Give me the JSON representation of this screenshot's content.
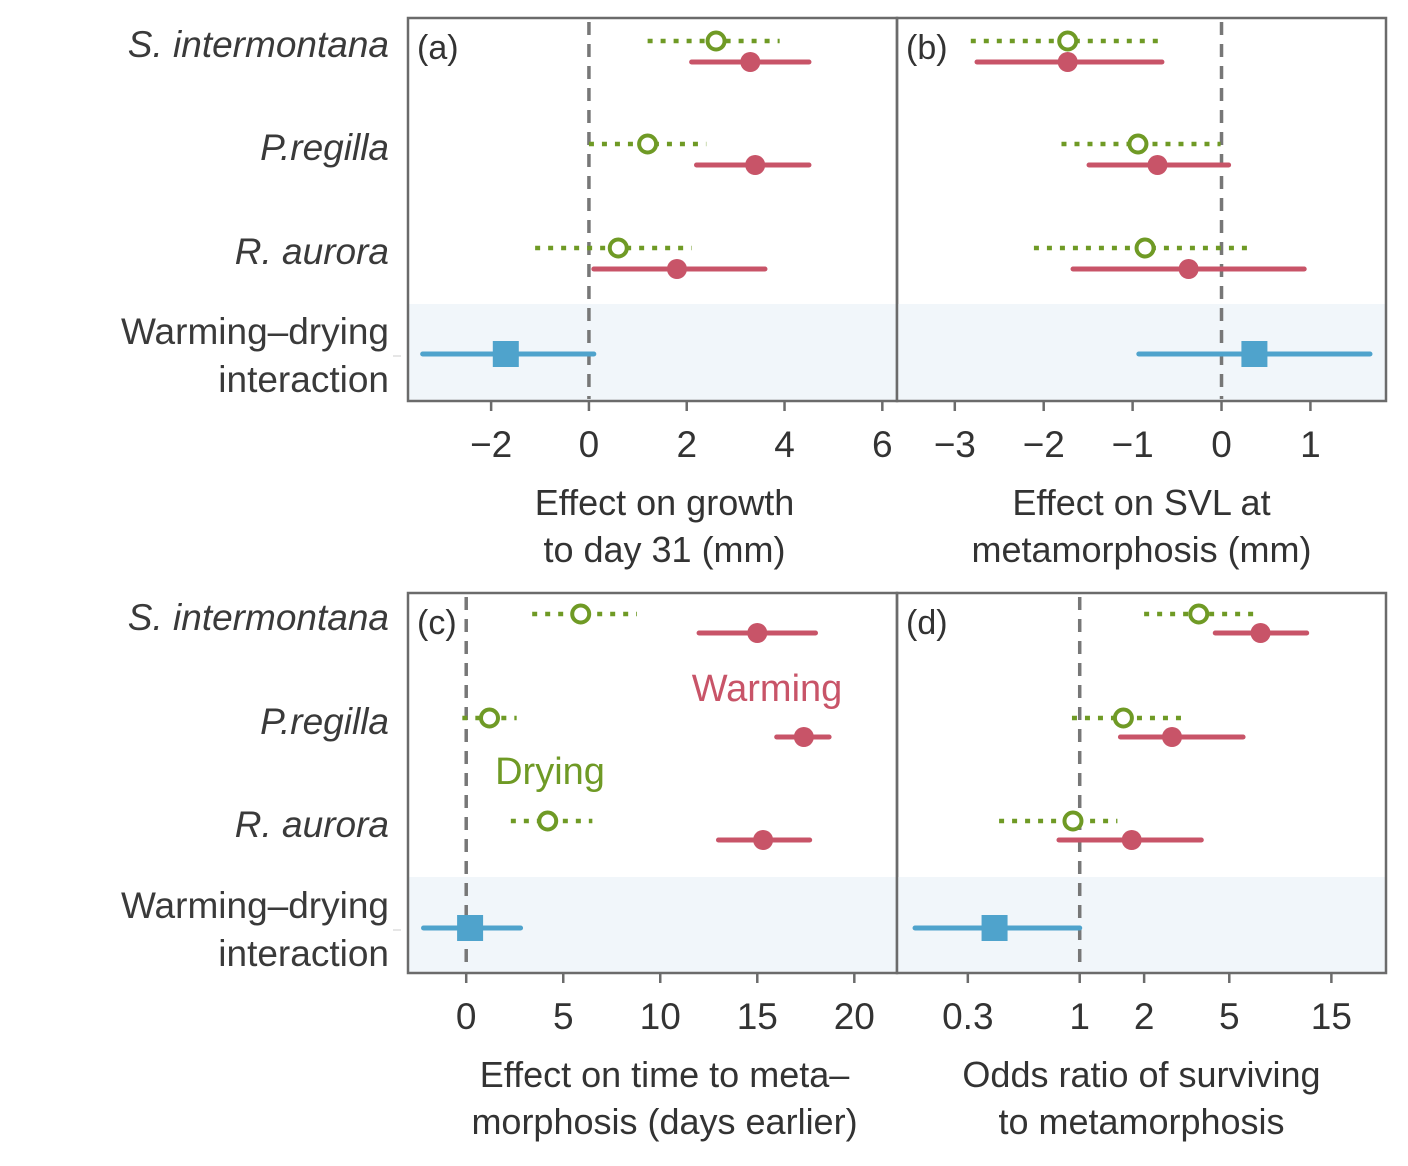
{
  "row_labels": [
    "S. intermontana",
    "P.regilla",
    "R. aurora"
  ],
  "interaction_label": [
    "Warming–drying",
    "interaction"
  ],
  "colors": {
    "warming": "#c85468",
    "drying": "#6f9a25",
    "interaction": "#4fa3cc",
    "interaction_band": "#f1f6fa",
    "zero_line": "#777777",
    "frame": "#6b6b6b"
  },
  "chart_data": [
    {
      "panel": "(a)",
      "type": "forest",
      "xlabel": [
        "Effect on growth",
        "to day 31 (mm)"
      ],
      "xlim": [
        -3.7,
        6.3
      ],
      "xscale": "linear",
      "ticks": [
        -2,
        0,
        2,
        4,
        6
      ],
      "tick_labels": [
        "−2",
        "0",
        "2",
        "4",
        "6"
      ],
      "ref_line": 0,
      "series": [
        {
          "name": "Warming",
          "style": "solid-filled",
          "est": [
            3.3,
            3.4,
            1.8
          ],
          "lo": [
            2.1,
            2.2,
            0.1
          ],
          "hi": [
            4.5,
            4.5,
            3.6
          ]
        },
        {
          "name": "Drying",
          "style": "dotted-open",
          "est": [
            2.6,
            1.2,
            0.6
          ],
          "lo": [
            1.2,
            0.0,
            -1.1
          ],
          "hi": [
            3.9,
            2.4,
            2.1
          ]
        }
      ],
      "interaction": {
        "est": -1.7,
        "lo": -3.4,
        "hi": 0.1
      }
    },
    {
      "panel": "(b)",
      "type": "forest",
      "xlabel": [
        "Effect on SVL at",
        "metamorphosis (mm)"
      ],
      "xlim": [
        -3.65,
        1.85
      ],
      "xscale": "linear",
      "ticks": [
        -3,
        -2,
        -1,
        0,
        1
      ],
      "tick_labels": [
        "−3",
        "−2",
        "−1",
        "0",
        "1"
      ],
      "ref_line": 0,
      "series": [
        {
          "name": "Warming",
          "style": "solid-filled",
          "est": [
            -1.73,
            -0.72,
            -0.37
          ],
          "lo": [
            -2.75,
            -1.49,
            -1.67
          ],
          "hi": [
            -0.67,
            0.08,
            0.93
          ]
        },
        {
          "name": "Drying",
          "style": "dotted-open",
          "est": [
            -1.73,
            -0.94,
            -0.86
          ],
          "lo": [
            -2.82,
            -1.8,
            -2.11
          ],
          "hi": [
            -0.63,
            -0.01,
            0.35
          ]
        }
      ],
      "interaction": {
        "est": 0.37,
        "lo": -0.93,
        "hi": 1.67
      }
    },
    {
      "panel": "(c)",
      "type": "forest",
      "xlabel": [
        "Effect on time to meta–",
        "morphosis (days earlier)"
      ],
      "xlim": [
        -3.0,
        22.2
      ],
      "xscale": "linear",
      "ticks": [
        0,
        5,
        10,
        15,
        20
      ],
      "tick_labels": [
        "0",
        "5",
        "10",
        "15",
        "20"
      ],
      "ref_line": 0,
      "series": [
        {
          "name": "Warming",
          "label": "Warming",
          "style": "solid-filled",
          "est": [
            15.0,
            17.4,
            15.3
          ],
          "lo": [
            12.0,
            16.0,
            13.0
          ],
          "hi": [
            18.0,
            18.7,
            17.7
          ]
        },
        {
          "name": "Drying",
          "label": "Drying",
          "style": "dotted-open",
          "est": [
            5.9,
            1.2,
            4.2
          ],
          "lo": [
            3.4,
            -0.2,
            2.3
          ],
          "hi": [
            8.8,
            2.6,
            6.5
          ]
        }
      ],
      "interaction": {
        "est": 0.2,
        "lo": -2.2,
        "hi": 2.8
      }
    },
    {
      "panel": "(d)",
      "type": "forest",
      "xlabel": [
        "Odds ratio of surviving",
        "to metamorphosis"
      ],
      "xlim": [
        0.14,
        27
      ],
      "xscale": "log",
      "ticks": [
        0.3,
        1,
        2,
        5,
        15
      ],
      "tick_labels": [
        "0.3",
        "1",
        "2",
        "5",
        "15"
      ],
      "ref_line": 1,
      "series": [
        {
          "name": "Warming",
          "style": "solid-filled",
          "est": [
            7.0,
            2.7,
            1.75
          ],
          "lo": [
            4.3,
            1.55,
            0.8
          ],
          "hi": [
            11.5,
            5.8,
            3.7
          ]
        },
        {
          "name": "Drying",
          "style": "dotted-open",
          "est": [
            3.6,
            1.6,
            0.93
          ],
          "lo": [
            2.0,
            0.92,
            0.42
          ],
          "hi": [
            6.5,
            3.2,
            1.5
          ]
        }
      ],
      "interaction": {
        "est": 0.4,
        "lo": 0.17,
        "hi": 1.0
      }
    }
  ]
}
